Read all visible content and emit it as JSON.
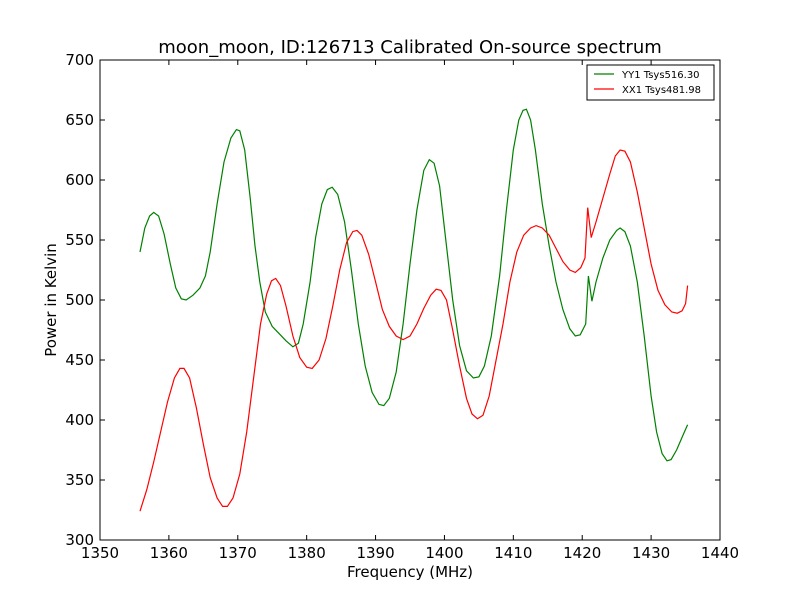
{
  "chart_data": {
    "type": "line",
    "title": "moon_moon, ID:126713 Calibrated On-source spectrum",
    "xlabel": "Frequency (MHz)",
    "ylabel": "Power in Kelvin",
    "xlim": [
      1350,
      1440
    ],
    "ylim": [
      300,
      700
    ],
    "xticks": [
      1350,
      1360,
      1370,
      1380,
      1390,
      1400,
      1410,
      1420,
      1430,
      1440
    ],
    "yticks": [
      300,
      350,
      400,
      450,
      500,
      550,
      600,
      650,
      700
    ],
    "grid": false,
    "legend_position": "top-right",
    "series": [
      {
        "name": "YY1 Tsys516.30",
        "color": "#008000",
        "points": [
          [
            1355.8,
            540
          ],
          [
            1356.5,
            560
          ],
          [
            1357.2,
            570
          ],
          [
            1357.8,
            573
          ],
          [
            1358.5,
            570
          ],
          [
            1359.3,
            555
          ],
          [
            1360.2,
            530
          ],
          [
            1361.0,
            510
          ],
          [
            1361.8,
            501
          ],
          [
            1362.5,
            500
          ],
          [
            1363.5,
            504
          ],
          [
            1364.5,
            510
          ],
          [
            1365.3,
            520
          ],
          [
            1366.0,
            540
          ],
          [
            1367.0,
            580
          ],
          [
            1368.0,
            615
          ],
          [
            1369.0,
            635
          ],
          [
            1369.8,
            642
          ],
          [
            1370.3,
            641
          ],
          [
            1371.0,
            625
          ],
          [
            1371.8,
            585
          ],
          [
            1372.5,
            545
          ],
          [
            1373.2,
            515
          ],
          [
            1374.0,
            490
          ],
          [
            1375.0,
            478
          ],
          [
            1376.0,
            472
          ],
          [
            1377.0,
            466
          ],
          [
            1378.0,
            461
          ],
          [
            1378.8,
            464
          ],
          [
            1379.5,
            480
          ],
          [
            1380.5,
            515
          ],
          [
            1381.3,
            552
          ],
          [
            1382.2,
            580
          ],
          [
            1383.0,
            592
          ],
          [
            1383.7,
            594
          ],
          [
            1384.5,
            588
          ],
          [
            1385.5,
            565
          ],
          [
            1386.5,
            525
          ],
          [
            1387.5,
            480
          ],
          [
            1388.5,
            445
          ],
          [
            1389.5,
            423
          ],
          [
            1390.5,
            413
          ],
          [
            1391.2,
            412
          ],
          [
            1392.0,
            418
          ],
          [
            1393.0,
            440
          ],
          [
            1394.0,
            480
          ],
          [
            1395.0,
            530
          ],
          [
            1396.0,
            575
          ],
          [
            1397.0,
            608
          ],
          [
            1397.8,
            617
          ],
          [
            1398.5,
            614
          ],
          [
            1399.3,
            595
          ],
          [
            1400.2,
            550
          ],
          [
            1401.2,
            500
          ],
          [
            1402.2,
            462
          ],
          [
            1403.2,
            441
          ],
          [
            1404.2,
            435
          ],
          [
            1405.0,
            436
          ],
          [
            1405.8,
            445
          ],
          [
            1406.8,
            470
          ],
          [
            1408.0,
            520
          ],
          [
            1409.0,
            575
          ],
          [
            1410.0,
            625
          ],
          [
            1410.8,
            650
          ],
          [
            1411.4,
            658
          ],
          [
            1411.9,
            659
          ],
          [
            1412.5,
            650
          ],
          [
            1413.2,
            625
          ],
          [
            1414.2,
            580
          ],
          [
            1415.2,
            545
          ],
          [
            1416.2,
            515
          ],
          [
            1417.2,
            492
          ],
          [
            1418.2,
            476
          ],
          [
            1419.0,
            470
          ],
          [
            1419.7,
            471
          ],
          [
            1420.5,
            480
          ],
          [
            1420.9,
            520
          ],
          [
            1421.4,
            499
          ],
          [
            1422.0,
            515
          ],
          [
            1423.0,
            535
          ],
          [
            1424.0,
            550
          ],
          [
            1425.0,
            558
          ],
          [
            1425.5,
            560
          ],
          [
            1426.2,
            557
          ],
          [
            1427.0,
            545
          ],
          [
            1428.0,
            515
          ],
          [
            1429.0,
            470
          ],
          [
            1430.0,
            420
          ],
          [
            1430.8,
            390
          ],
          [
            1431.6,
            372
          ],
          [
            1432.3,
            366
          ],
          [
            1432.9,
            367
          ],
          [
            1433.7,
            375
          ],
          [
            1434.6,
            387
          ],
          [
            1435.3,
            396
          ]
        ]
      },
      {
        "name": "XX1 Tsys481.98",
        "color": "#ff0000",
        "points": [
          [
            1355.8,
            324
          ],
          [
            1356.8,
            342
          ],
          [
            1357.8,
            365
          ],
          [
            1358.8,
            390
          ],
          [
            1359.8,
            415
          ],
          [
            1360.8,
            435
          ],
          [
            1361.6,
            443
          ],
          [
            1362.2,
            443
          ],
          [
            1363.0,
            435
          ],
          [
            1364.0,
            410
          ],
          [
            1365.0,
            380
          ],
          [
            1366.0,
            352
          ],
          [
            1367.0,
            335
          ],
          [
            1367.8,
            328
          ],
          [
            1368.5,
            328
          ],
          [
            1369.3,
            335
          ],
          [
            1370.3,
            355
          ],
          [
            1371.3,
            390
          ],
          [
            1372.3,
            435
          ],
          [
            1373.3,
            480
          ],
          [
            1374.2,
            505
          ],
          [
            1374.9,
            516
          ],
          [
            1375.5,
            518
          ],
          [
            1376.2,
            512
          ],
          [
            1377.0,
            495
          ],
          [
            1378.0,
            470
          ],
          [
            1379.0,
            452
          ],
          [
            1380.0,
            444
          ],
          [
            1380.8,
            443
          ],
          [
            1381.8,
            450
          ],
          [
            1382.8,
            468
          ],
          [
            1383.8,
            495
          ],
          [
            1384.8,
            525
          ],
          [
            1385.8,
            548
          ],
          [
            1386.7,
            557
          ],
          [
            1387.3,
            558
          ],
          [
            1388.0,
            554
          ],
          [
            1389.0,
            538
          ],
          [
            1390.0,
            515
          ],
          [
            1391.0,
            492
          ],
          [
            1392.0,
            478
          ],
          [
            1393.0,
            470
          ],
          [
            1394.0,
            467
          ],
          [
            1395.0,
            470
          ],
          [
            1396.0,
            480
          ],
          [
            1397.0,
            493
          ],
          [
            1398.0,
            504
          ],
          [
            1398.8,
            509
          ],
          [
            1399.5,
            508
          ],
          [
            1400.3,
            500
          ],
          [
            1401.2,
            475
          ],
          [
            1402.2,
            445
          ],
          [
            1403.2,
            418
          ],
          [
            1404.0,
            405
          ],
          [
            1404.8,
            401
          ],
          [
            1405.6,
            404
          ],
          [
            1406.5,
            420
          ],
          [
            1407.5,
            450
          ],
          [
            1408.5,
            480
          ],
          [
            1409.5,
            515
          ],
          [
            1410.5,
            540
          ],
          [
            1411.5,
            554
          ],
          [
            1412.5,
            560
          ],
          [
            1413.3,
            562
          ],
          [
            1414.2,
            560
          ],
          [
            1415.2,
            554
          ],
          [
            1416.2,
            543
          ],
          [
            1417.2,
            532
          ],
          [
            1418.2,
            525
          ],
          [
            1419.0,
            523
          ],
          [
            1419.8,
            527
          ],
          [
            1420.4,
            535
          ],
          [
            1420.8,
            577
          ],
          [
            1421.3,
            552
          ],
          [
            1422.0,
            565
          ],
          [
            1423.0,
            585
          ],
          [
            1424.0,
            605
          ],
          [
            1424.8,
            620
          ],
          [
            1425.5,
            625
          ],
          [
            1426.2,
            624
          ],
          [
            1427.0,
            615
          ],
          [
            1428.0,
            590
          ],
          [
            1429.0,
            560
          ],
          [
            1430.0,
            530
          ],
          [
            1431.0,
            508
          ],
          [
            1432.0,
            496
          ],
          [
            1433.0,
            490
          ],
          [
            1433.8,
            489
          ],
          [
            1434.5,
            491
          ],
          [
            1435.0,
            497
          ],
          [
            1435.3,
            512
          ]
        ]
      }
    ]
  }
}
